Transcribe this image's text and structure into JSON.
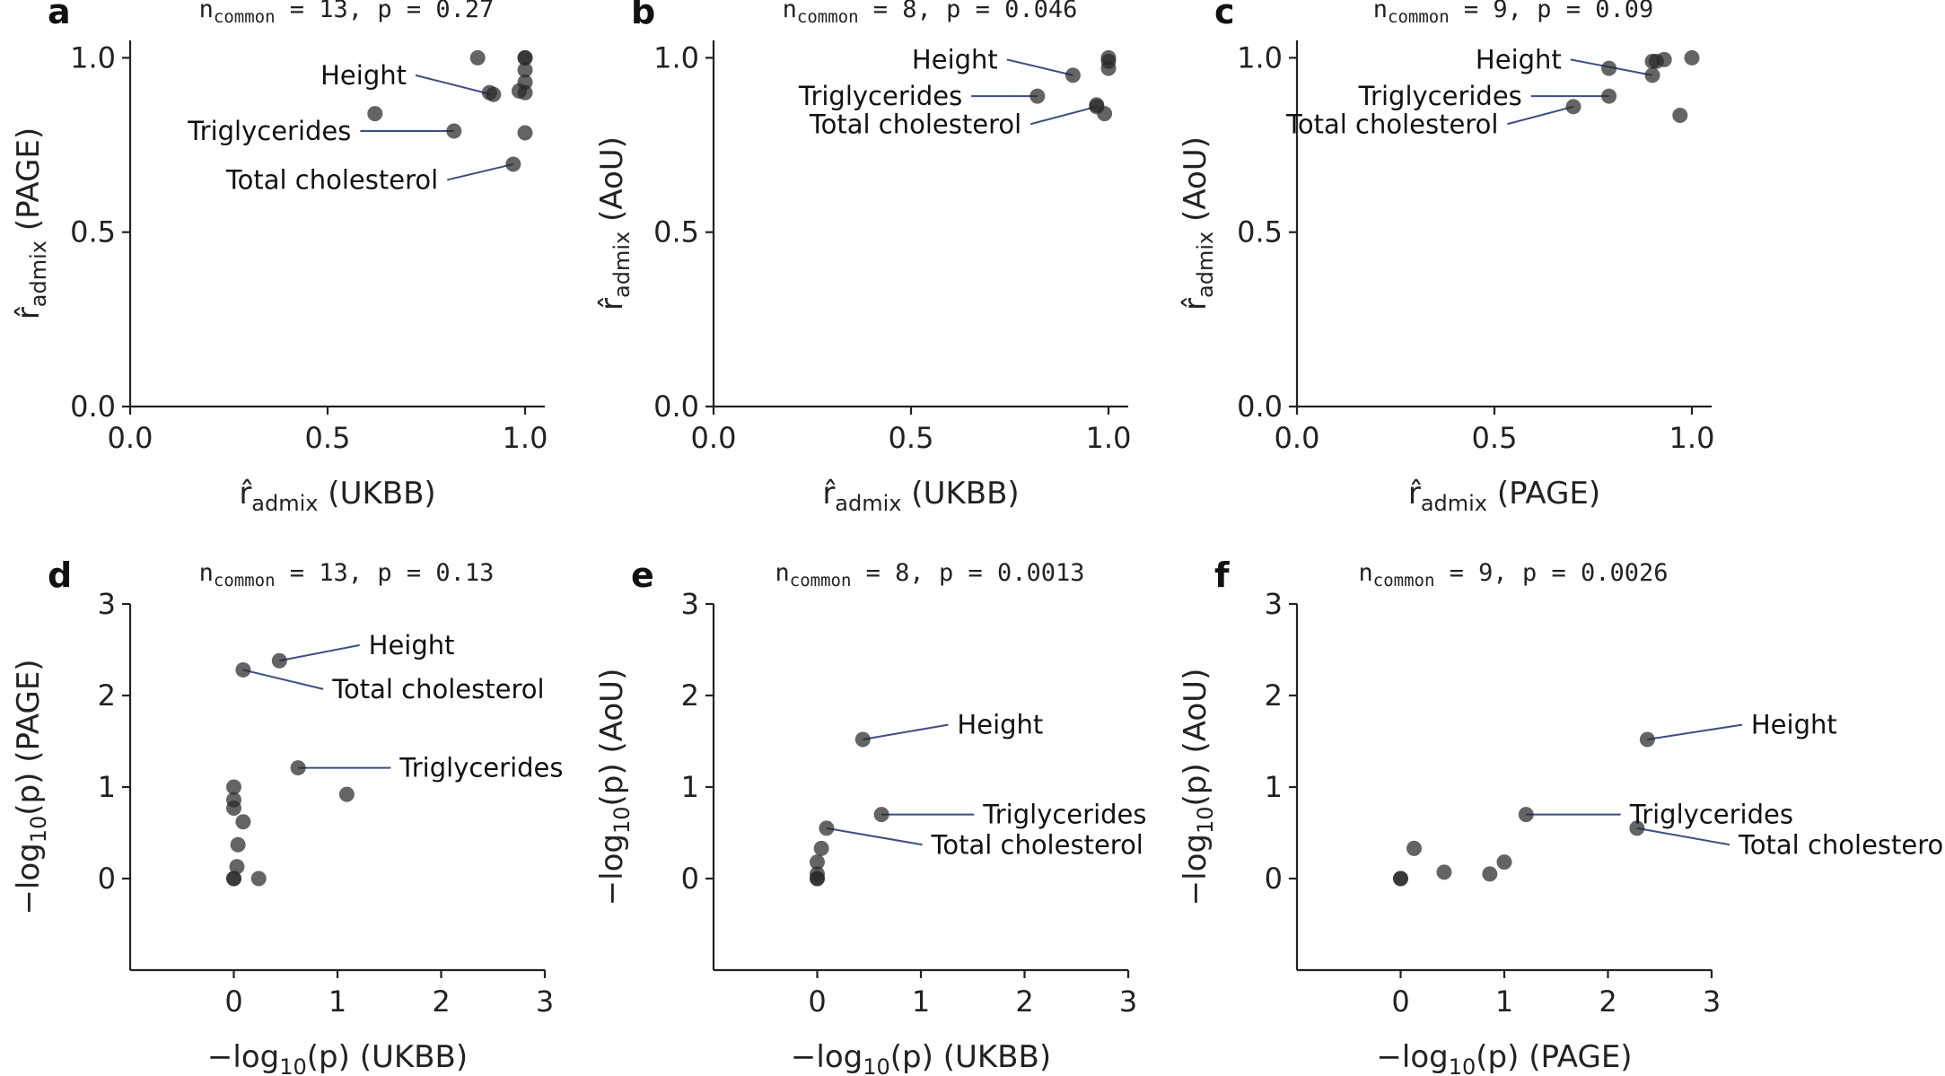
{
  "chart_data": [
    {
      "panel": "a",
      "type": "scatter",
      "title_prefix": "n",
      "title_sub": "common",
      "title_rest": " = 13, p = 0.27",
      "xlabel": {
        "pre": "r̂",
        "sub": "admix",
        "post": " (UKBB)"
      },
      "ylabel": {
        "pre": "r̂",
        "sub": "admix",
        "post": " (PAGE)"
      },
      "xlim": [
        0,
        1.05
      ],
      "ylim": [
        0,
        1.05
      ],
      "xticks": [
        "0.0",
        "0.5",
        "1.0"
      ],
      "xtick_values": [
        0,
        0.5,
        1.0
      ],
      "yticks": [
        "0.0",
        "0.5",
        "1.0"
      ],
      "ytick_values": [
        0,
        0.5,
        1.0
      ],
      "points": [
        {
          "x": 0.88,
          "y": 1.0
        },
        {
          "x": 1.0,
          "y": 1.0
        },
        {
          "x": 1.0,
          "y": 1.0
        },
        {
          "x": 1.0,
          "y": 0.965
        },
        {
          "x": 0.985,
          "y": 0.905
        },
        {
          "x": 1.0,
          "y": 0.93
        },
        {
          "x": 1.0,
          "y": 0.9
        },
        {
          "x": 0.91,
          "y": 0.9
        },
        {
          "x": 0.92,
          "y": 0.895
        },
        {
          "x": 0.62,
          "y": 0.84
        },
        {
          "x": 0.82,
          "y": 0.79
        },
        {
          "x": 1.0,
          "y": 0.785
        },
        {
          "x": 0.97,
          "y": 0.695
        }
      ],
      "annotations": [
        {
          "text": "Height",
          "px": 0.915,
          "py": 0.895,
          "tx": 0.7,
          "ty": 0.95,
          "anchor": "end"
        },
        {
          "text": "Triglycerides",
          "px": 0.82,
          "py": 0.79,
          "tx": 0.56,
          "ty": 0.79,
          "anchor": "end"
        },
        {
          "text": "Total cholesterol",
          "px": 0.97,
          "py": 0.695,
          "tx": 0.78,
          "ty": 0.65,
          "anchor": "end"
        }
      ]
    },
    {
      "panel": "b",
      "type": "scatter",
      "title_prefix": "n",
      "title_sub": "common",
      "title_rest": " = 8, p = 0.046",
      "xlabel": {
        "pre": "r̂",
        "sub": "admix",
        "post": " (UKBB)"
      },
      "ylabel": {
        "pre": "r̂",
        "sub": "admix",
        "post": " (AoU)"
      },
      "xlim": [
        0,
        1.05
      ],
      "ylim": [
        0,
        1.05
      ],
      "xticks": [
        "0.0",
        "0.5",
        "1.0"
      ],
      "xtick_values": [
        0,
        0.5,
        1.0
      ],
      "yticks": [
        "0.0",
        "0.5",
        "1.0"
      ],
      "ytick_values": [
        0,
        0.5,
        1.0
      ],
      "points": [
        {
          "x": 1.0,
          "y": 1.0
        },
        {
          "x": 1.0,
          "y": 0.99
        },
        {
          "x": 1.0,
          "y": 0.97
        },
        {
          "x": 0.91,
          "y": 0.95
        },
        {
          "x": 0.82,
          "y": 0.89
        },
        {
          "x": 0.97,
          "y": 0.86
        },
        {
          "x": 0.99,
          "y": 0.84
        },
        {
          "x": 0.97,
          "y": 0.865
        }
      ],
      "annotations": [
        {
          "text": "Height",
          "px": 0.91,
          "py": 0.95,
          "tx": 0.72,
          "ty": 0.995,
          "anchor": "end"
        },
        {
          "text": "Triglycerides",
          "px": 0.82,
          "py": 0.89,
          "tx": 0.63,
          "ty": 0.89,
          "anchor": "end"
        },
        {
          "text": "Total cholesterol",
          "px": 0.97,
          "py": 0.86,
          "tx": 0.78,
          "ty": 0.81,
          "anchor": "end"
        }
      ]
    },
    {
      "panel": "c",
      "type": "scatter",
      "title_prefix": "n",
      "title_sub": "common",
      "title_rest": " = 9, p = 0.09",
      "xlabel": {
        "pre": "r̂",
        "sub": "admix",
        "post": " (PAGE)"
      },
      "ylabel": {
        "pre": "r̂",
        "sub": "admix",
        "post": " (AoU)"
      },
      "xlim": [
        0,
        1.05
      ],
      "ylim": [
        0,
        1.05
      ],
      "xticks": [
        "0.0",
        "0.5",
        "1.0"
      ],
      "xtick_values": [
        0,
        0.5,
        1.0
      ],
      "yticks": [
        "0.0",
        "0.5",
        "1.0"
      ],
      "ytick_values": [
        0,
        0.5,
        1.0
      ],
      "points": [
        {
          "x": 1.0,
          "y": 1.0
        },
        {
          "x": 0.93,
          "y": 0.995
        },
        {
          "x": 0.9,
          "y": 0.99
        },
        {
          "x": 0.79,
          "y": 0.97
        },
        {
          "x": 0.9,
          "y": 0.95
        },
        {
          "x": 0.79,
          "y": 0.89
        },
        {
          "x": 0.7,
          "y": 0.86
        },
        {
          "x": 0.97,
          "y": 0.835
        },
        {
          "x": 0.91,
          "y": 0.99
        }
      ],
      "annotations": [
        {
          "text": "Height",
          "px": 0.9,
          "py": 0.95,
          "tx": 0.67,
          "ty": 0.995,
          "anchor": "end"
        },
        {
          "text": "Triglycerides",
          "px": 0.79,
          "py": 0.89,
          "tx": 0.57,
          "ty": 0.89,
          "anchor": "end"
        },
        {
          "text": "Total cholesterol",
          "px": 0.7,
          "py": 0.86,
          "tx": 0.51,
          "ty": 0.81,
          "anchor": "end"
        }
      ]
    },
    {
      "panel": "d",
      "type": "scatter",
      "title_prefix": "n",
      "title_sub": "common",
      "title_rest": " = 13, p = 0.13",
      "xlabel": {
        "pre": "−log",
        "sub": "10",
        "post": "(p) (UKBB)"
      },
      "ylabel": {
        "pre": "−log",
        "sub": "10",
        "post": "(p) (PAGE)"
      },
      "xlim": [
        -1,
        3
      ],
      "ylim": [
        -1,
        3
      ],
      "xticks": [
        "0",
        "1",
        "2",
        "3"
      ],
      "xtick_values": [
        0,
        1,
        2,
        3
      ],
      "yticks": [
        "0",
        "1",
        "2",
        "3"
      ],
      "ytick_values": [
        0,
        1,
        2,
        3
      ],
      "points": [
        {
          "x": 0.44,
          "y": 2.38
        },
        {
          "x": 0.09,
          "y": 2.28
        },
        {
          "x": 0.62,
          "y": 1.21
        },
        {
          "x": 1.09,
          "y": 0.92
        },
        {
          "x": 0.0,
          "y": 1.0
        },
        {
          "x": 0.0,
          "y": 0.86
        },
        {
          "x": 0.0,
          "y": 0.77
        },
        {
          "x": 0.09,
          "y": 0.62
        },
        {
          "x": 0.04,
          "y": 0.37
        },
        {
          "x": 0.03,
          "y": 0.13
        },
        {
          "x": 0.24,
          "y": 0.0
        },
        {
          "x": 0.0,
          "y": 0.0
        },
        {
          "x": 0.0,
          "y": 0.0
        }
      ],
      "annotations": [
        {
          "text": "Height",
          "px": 0.44,
          "py": 2.38,
          "tx": 1.3,
          "ty": 2.55,
          "anchor": "start"
        },
        {
          "text": "Total cholesterol",
          "px": 0.09,
          "py": 2.28,
          "tx": 0.95,
          "ty": 2.07,
          "anchor": "start"
        },
        {
          "text": "Triglycerides",
          "px": 0.62,
          "py": 1.21,
          "tx": 1.6,
          "ty": 1.21,
          "anchor": "start"
        }
      ]
    },
    {
      "panel": "e",
      "type": "scatter",
      "title_prefix": "n",
      "title_sub": "common",
      "title_rest": " = 8, p = 0.0013",
      "xlabel": {
        "pre": "−log",
        "sub": "10",
        "post": "(p) (UKBB)"
      },
      "ylabel": {
        "pre": "−log",
        "sub": "10",
        "post": "(p) (AoU)"
      },
      "xlim": [
        -1,
        3
      ],
      "ylim": [
        -1,
        3
      ],
      "xticks": [
        "0",
        "1",
        "2",
        "3"
      ],
      "xtick_values": [
        0,
        1,
        2,
        3
      ],
      "yticks": [
        "0",
        "1",
        "2",
        "3"
      ],
      "ytick_values": [
        0,
        1,
        2,
        3
      ],
      "points": [
        {
          "x": 0.44,
          "y": 1.52
        },
        {
          "x": 0.62,
          "y": 0.7
        },
        {
          "x": 0.09,
          "y": 0.55
        },
        {
          "x": 0.04,
          "y": 0.33
        },
        {
          "x": 0.0,
          "y": 0.18
        },
        {
          "x": 0.0,
          "y": 0.05
        },
        {
          "x": 0.0,
          "y": 0.0
        },
        {
          "x": 0.0,
          "y": 0.0
        }
      ],
      "annotations": [
        {
          "text": "Height",
          "px": 0.44,
          "py": 1.52,
          "tx": 1.35,
          "ty": 1.68,
          "anchor": "start"
        },
        {
          "text": "Triglycerides",
          "px": 0.62,
          "py": 0.7,
          "tx": 1.6,
          "ty": 0.7,
          "anchor": "start"
        },
        {
          "text": "Total cholesterol",
          "px": 0.09,
          "py": 0.55,
          "tx": 1.1,
          "ty": 0.37,
          "anchor": "start"
        }
      ]
    },
    {
      "panel": "f",
      "type": "scatter",
      "title_prefix": "n",
      "title_sub": "common",
      "title_rest": " = 9, p = 0.0026",
      "xlabel": {
        "pre": "−log",
        "sub": "10",
        "post": "(p) (PAGE)"
      },
      "ylabel": {
        "pre": "−log",
        "sub": "10",
        "post": "(p) (AoU)"
      },
      "xlim": [
        -1,
        3
      ],
      "ylim": [
        -1,
        3
      ],
      "xticks": [
        "0",
        "1",
        "2",
        "3"
      ],
      "xtick_values": [
        0,
        1,
        2,
        3
      ],
      "yticks": [
        "0",
        "1",
        "2",
        "3"
      ],
      "ytick_values": [
        0,
        1,
        2,
        3
      ],
      "points": [
        {
          "x": 2.38,
          "y": 1.52
        },
        {
          "x": 1.21,
          "y": 0.7
        },
        {
          "x": 2.28,
          "y": 0.55
        },
        {
          "x": 0.13,
          "y": 0.33
        },
        {
          "x": 1.0,
          "y": 0.18
        },
        {
          "x": 0.42,
          "y": 0.07
        },
        {
          "x": 0.86,
          "y": 0.05
        },
        {
          "x": 0.0,
          "y": 0.0
        },
        {
          "x": 0.0,
          "y": 0.0
        }
      ],
      "annotations": [
        {
          "text": "Height",
          "px": 2.38,
          "py": 1.52,
          "tx": 3.38,
          "ty": 1.68,
          "anchor": "start"
        },
        {
          "text": "Triglycerides",
          "px": 1.21,
          "py": 0.7,
          "tx": 2.21,
          "ty": 0.7,
          "anchor": "start"
        },
        {
          "text": "Total cholesterol",
          "px": 2.28,
          "py": 0.55,
          "tx": 3.26,
          "ty": 0.37,
          "anchor": "start"
        }
      ]
    }
  ]
}
